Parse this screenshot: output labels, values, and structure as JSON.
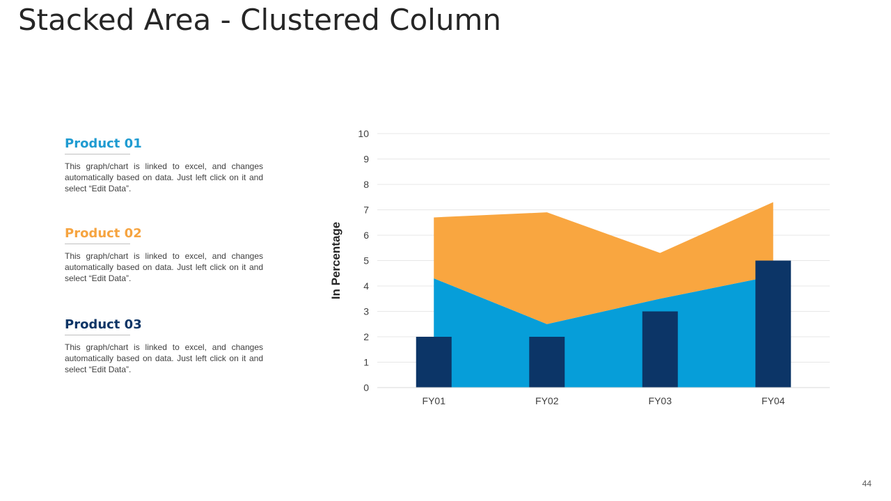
{
  "slide": {
    "title": "Stacked Area - Clustered Column",
    "page_number": "44"
  },
  "products": [
    {
      "name": "Product 01",
      "description": "This graph/chart is linked to excel, and changes automatically based on data. Just left click on it and select “Edit Data”."
    },
    {
      "name": "Product 02",
      "description": "This graph/chart is linked to excel, and changes automatically based on data. Just left click on it and select “Edit Data”."
    },
    {
      "name": "Product 03",
      "description": "This graph/chart is linked to excel, and changes automatically based on data. Just left click on it and select “Edit Data”."
    }
  ],
  "chart_data": {
    "type": "area",
    "title": "",
    "xlabel": "",
    "ylabel": "In Percentage",
    "categories": [
      "FY01",
      "FY02",
      "FY03",
      "FY04"
    ],
    "ylim": [
      0,
      10
    ],
    "yticks": [
      0,
      1,
      2,
      3,
      4,
      5,
      6,
      7,
      8,
      9,
      10
    ],
    "grid": true,
    "legend": "none",
    "series": [
      {
        "kind": "stacked-area",
        "values": [
          4.3,
          2.5,
          3.5,
          4.4
        ],
        "color": "#069ed9"
      },
      {
        "kind": "stacked-area",
        "values": [
          2.4,
          4.4,
          1.8,
          2.9
        ],
        "color": "#f9a640"
      },
      {
        "kind": "column",
        "values": [
          2,
          2,
          3,
          5
        ],
        "color": "#0c3567"
      }
    ]
  }
}
